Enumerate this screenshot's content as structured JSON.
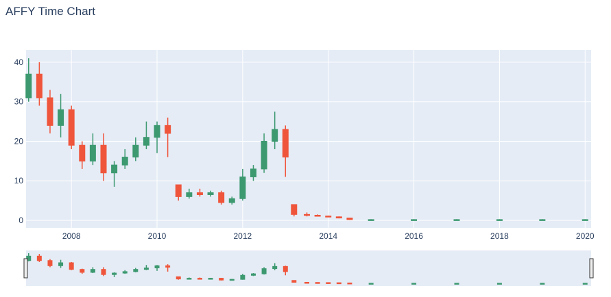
{
  "chart_data": {
    "type": "candlestick",
    "title": "AFFY Time Chart",
    "increasing_color": "#3d9970",
    "decreasing_color": "#ef553b",
    "x": [
      2007.0,
      2007.25,
      2007.5,
      2007.75,
      2008.0,
      2008.25,
      2008.5,
      2008.75,
      2009.0,
      2009.25,
      2009.5,
      2009.75,
      2010.0,
      2010.25,
      2010.5,
      2010.75,
      2011.0,
      2011.25,
      2011.5,
      2011.75,
      2012.0,
      2012.25,
      2012.5,
      2012.75,
      2013.0,
      2013.2,
      2013.5,
      2013.75,
      2014.0,
      2014.25,
      2014.5,
      2015.0,
      2016.0,
      2017.0,
      2018.0,
      2019.0,
      2020.0
    ],
    "open": [
      31,
      37,
      31,
      24,
      28,
      19,
      15,
      19,
      12,
      14,
      16,
      19,
      21,
      24,
      9,
      6,
      7,
      6.5,
      7,
      4.5,
      5.5,
      11,
      13,
      20,
      23,
      4,
      1.5,
      1.3,
      1.1,
      0.9,
      0.6,
      0.2,
      0.2,
      0.2,
      0.2,
      0.2,
      0.2
    ],
    "high": [
      41,
      40,
      33,
      32,
      29,
      20,
      22,
      22,
      15,
      18,
      21,
      25,
      25,
      26,
      9,
      8,
      8,
      7.5,
      7.5,
      6,
      13,
      14,
      22,
      27.5,
      24,
      4,
      2,
      1.5,
      1.2,
      1,
      0.6,
      0.3,
      0.3,
      0.3,
      0.3,
      0.3,
      0.3
    ],
    "low": [
      30,
      29,
      22,
      21,
      18,
      13,
      14,
      10,
      8.5,
      13,
      15,
      18,
      17,
      16,
      5,
      5.5,
      6,
      6,
      4,
      4,
      5,
      10,
      12,
      18,
      11,
      1,
      1,
      1,
      0.8,
      0.5,
      0.1,
      0.1,
      0.1,
      0.1,
      0.1,
      0.1,
      0.1
    ],
    "close": [
      37,
      31,
      24,
      28,
      19,
      15,
      19,
      12,
      14,
      16,
      19,
      21,
      24,
      22,
      6,
      7,
      6.5,
      7,
      4.5,
      5.5,
      11,
      13,
      20,
      23,
      16,
      1.5,
      1.3,
      1.1,
      0.9,
      0.6,
      0.2,
      0.2,
      0.2,
      0.2,
      0.2,
      0.2,
      0.2
    ],
    "xlim": [
      2006.94,
      2020.14
    ],
    "xticks": [
      2008,
      2010,
      2012,
      2014,
      2016,
      2018,
      2020
    ],
    "ylim": [
      -1.9,
      43.1
    ],
    "yticks": [
      0,
      10,
      20,
      30,
      40
    ],
    "grid": true,
    "rangeslider": true
  }
}
